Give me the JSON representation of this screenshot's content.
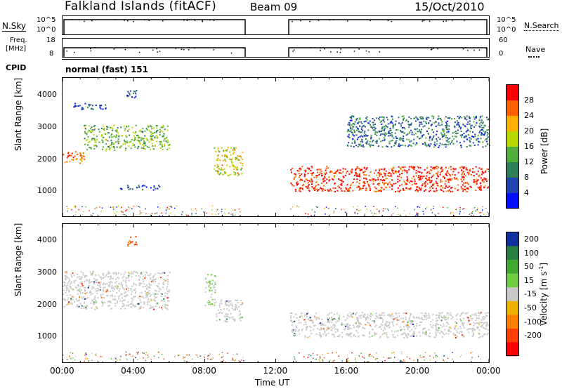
{
  "header": {
    "station": "Falkland Islands (fitACF)",
    "beam": "Beam 09",
    "date": "15/Oct/2010"
  },
  "nsky_panel": {
    "left_label": "N.Sky",
    "left_ticks": [
      "10^5",
      "10^0"
    ],
    "right_ticks": [
      "10^5",
      "10^0"
    ],
    "right_label": "N.Search"
  },
  "freq_panel": {
    "left_label_1": "Freq.",
    "left_label_2": "[MHz]",
    "left_ticks": [
      "18",
      "8"
    ],
    "right_ticks": [
      "60",
      "0"
    ],
    "right_label": "Nave"
  },
  "cpid": {
    "label": "CPID",
    "mode": "normal (fast) 151"
  },
  "power_panel": {
    "ylabel": "Slant Range [km]",
    "yticks": [
      "4000",
      "3000",
      "2000",
      "1000"
    ],
    "colorbar_label": "Power [dB]",
    "colorbar_ticks": [
      "28",
      "24",
      "20",
      "16",
      "12",
      "8",
      "4"
    ],
    "colors": [
      "#0010ff",
      "#1f45b0",
      "#2f7f5a",
      "#4faf3a",
      "#b8d800",
      "#ffb000",
      "#ff6000",
      "#ff0000"
    ]
  },
  "velocity_panel": {
    "ylabel": "Slant Range [km]",
    "yticks": [
      "4000",
      "3000",
      "2000",
      "1000"
    ],
    "colorbar_label": "Velocity [m s^-1]",
    "colorbar_ticks": [
      "200",
      "100",
      "50",
      "15",
      "-15",
      "-50",
      "-100",
      "-200"
    ],
    "colors": [
      "#1030a0",
      "#2a7f40",
      "#3faa30",
      "#70cc40",
      "#c8c8c8",
      "#f0b000",
      "#ff8000",
      "#ff4000",
      "#ff0000"
    ]
  },
  "xaxis": {
    "label": "Time UT",
    "ticks": [
      "00:00",
      "04:00",
      "08:00",
      "12:00",
      "16:00",
      "20:00",
      "00:00"
    ]
  },
  "chart_data": [
    {
      "type": "heatmap",
      "title": "Power",
      "xlabel": "Time UT",
      "ylabel": "Slant Range [km]",
      "xlim_hours": [
        0,
        24
      ],
      "ylim_km": [
        180,
        4600
      ],
      "colorbar": "Power [dB]",
      "colorbar_range": [
        0,
        30
      ],
      "data_gap_hours": [
        10.2,
        12.8
      ],
      "echo_bands": [
        {
          "start_h": 0.0,
          "end_h": 1.2,
          "range_km": [
            1900,
            2300
          ],
          "power_db": 24
        },
        {
          "start_h": 1.2,
          "end_h": 6.0,
          "range_km": [
            2300,
            3100
          ],
          "power_db": 14
        },
        {
          "start_h": 0.5,
          "end_h": 2.5,
          "range_km": [
            3600,
            3800
          ],
          "power_db": 6
        },
        {
          "start_h": 3.6,
          "end_h": 4.2,
          "range_km": [
            3900,
            4200
          ],
          "power_db": 6
        },
        {
          "start_h": 3.2,
          "end_h": 5.5,
          "range_km": [
            1050,
            1200
          ],
          "power_db": 6
        },
        {
          "start_h": 8.5,
          "end_h": 10.1,
          "range_km": [
            1500,
            2400
          ],
          "power_db": 18
        },
        {
          "start_h": 12.8,
          "end_h": 24.0,
          "range_km": [
            1000,
            1800
          ],
          "power_db": 27
        },
        {
          "start_h": 16.0,
          "end_h": 24.0,
          "range_km": [
            2400,
            3400
          ],
          "power_db": 8
        }
      ]
    },
    {
      "type": "heatmap",
      "title": "Velocity",
      "xlabel": "Time UT",
      "ylabel": "Slant Range [km]",
      "xlim_hours": [
        0,
        24
      ],
      "ylim_km": [
        180,
        4600
      ],
      "colorbar": "Velocity [m s^-1]",
      "colorbar_range": [
        -250,
        250
      ],
      "data_gap_hours": [
        10.2,
        12.8
      ],
      "echo_bands": [
        {
          "start_h": 0.0,
          "end_h": 6.0,
          "range_km": [
            1900,
            3100
          ],
          "velocity_ms": 0
        },
        {
          "start_h": 8.0,
          "end_h": 8.6,
          "range_km": [
            2000,
            3000
          ],
          "velocity_ms": 30
        },
        {
          "start_h": 8.6,
          "end_h": 10.1,
          "range_km": [
            1500,
            2200
          ],
          "velocity_ms": 0
        },
        {
          "start_h": 12.8,
          "end_h": 24.0,
          "range_km": [
            1000,
            1800
          ],
          "velocity_ms": 0
        },
        {
          "start_h": 3.6,
          "end_h": 4.2,
          "range_km": [
            3900,
            4200
          ],
          "velocity_ms": -150
        }
      ]
    }
  ]
}
